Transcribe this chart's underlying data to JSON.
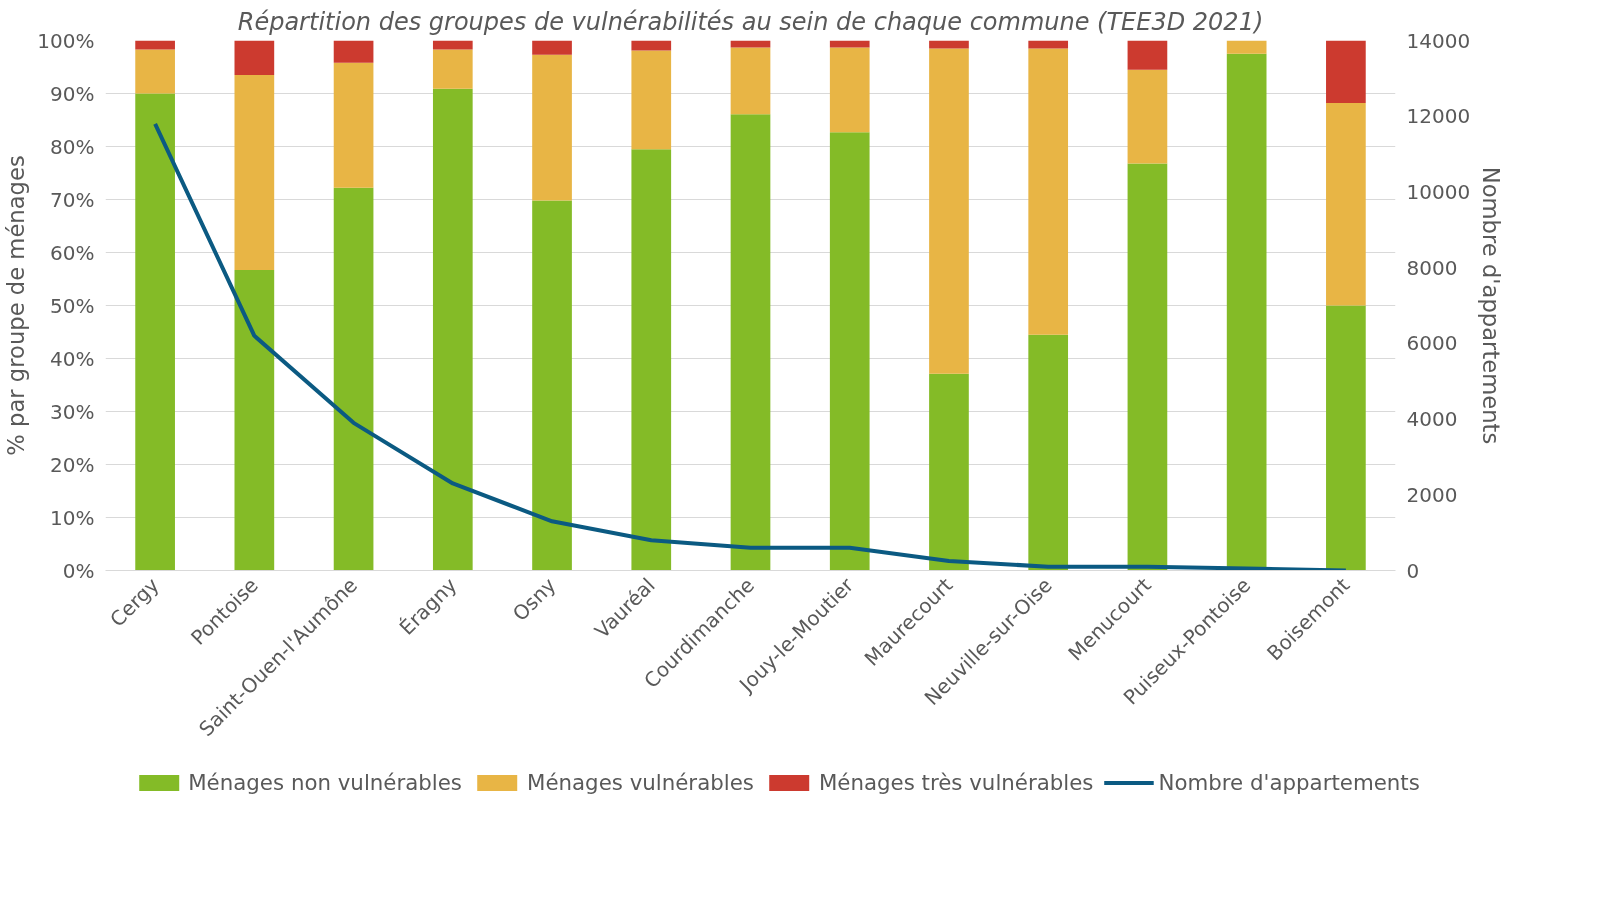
{
  "chart_data": {
    "type": "bar",
    "stacked": true,
    "title": "Répartition des groupes de vulnérabilités au sein de chaque commune (TEE3D 2021)",
    "ylabel": "% par groupe de ménages",
    "y2label": "Nombre d'appartements",
    "categories": [
      "Cergy",
      "Pontoise",
      "Saint-Ouen-l'Aumône",
      "Éragny",
      "Osny",
      "Vauréal",
      "Courdimanche",
      "Jouy-le-Moutier",
      "Maurecourt",
      "Neuville-sur-Oise",
      "Menucourt",
      "Puiseux-Pontoise",
      "Boisemont"
    ],
    "series": [
      {
        "name": "Ménages non vulnérables",
        "color": "#84bb27",
        "values": [
          90,
          56.7,
          72.2,
          90.9,
          69.8,
          79.5,
          86.1,
          82.7,
          37.1,
          44.5,
          76.8,
          97.5,
          50
        ]
      },
      {
        "name": "Ménages vulnérables",
        "color": "#e8b545",
        "values": [
          8.3,
          36.8,
          23.6,
          7.4,
          27.5,
          18.6,
          12.6,
          16.0,
          61.4,
          54.0,
          17.7,
          2.5,
          38.2
        ]
      },
      {
        "name": "Ménages très vulnérables",
        "color": "#cc3a2f",
        "values": [
          1.7,
          6.5,
          4.2,
          1.7,
          2.7,
          1.9,
          1.3,
          1.3,
          1.5,
          1.5,
          5.5,
          0,
          11.8
        ]
      },
      {
        "name": "Nombre d'appartements",
        "type": "line",
        "axis": "y2",
        "color": "#0b5a82",
        "values": [
          11800,
          6200,
          3900,
          2300,
          1300,
          800,
          600,
          600,
          250,
          100,
          100,
          50,
          0
        ]
      }
    ],
    "ylim": [
      0,
      100
    ],
    "yticks": [
      {
        "value": 0,
        "label": "0%"
      },
      {
        "value": 10,
        "label": "10%"
      },
      {
        "value": 20,
        "label": "20%"
      },
      {
        "value": 30,
        "label": "30%"
      },
      {
        "value": 40,
        "label": "40%"
      },
      {
        "value": 50,
        "label": "50%"
      },
      {
        "value": 60,
        "label": "60%"
      },
      {
        "value": 70,
        "label": "70%"
      },
      {
        "value": 80,
        "label": "80%"
      },
      {
        "value": 90,
        "label": "90%"
      },
      {
        "value": 100,
        "label": "100%"
      }
    ],
    "y2lim": [
      0,
      14000
    ],
    "y2ticks": [
      0,
      2000,
      4000,
      6000,
      8000,
      10000,
      12000,
      14000
    ],
    "grid": "y",
    "legend": "bottom",
    "marker": "none",
    "line_style": "solid"
  }
}
